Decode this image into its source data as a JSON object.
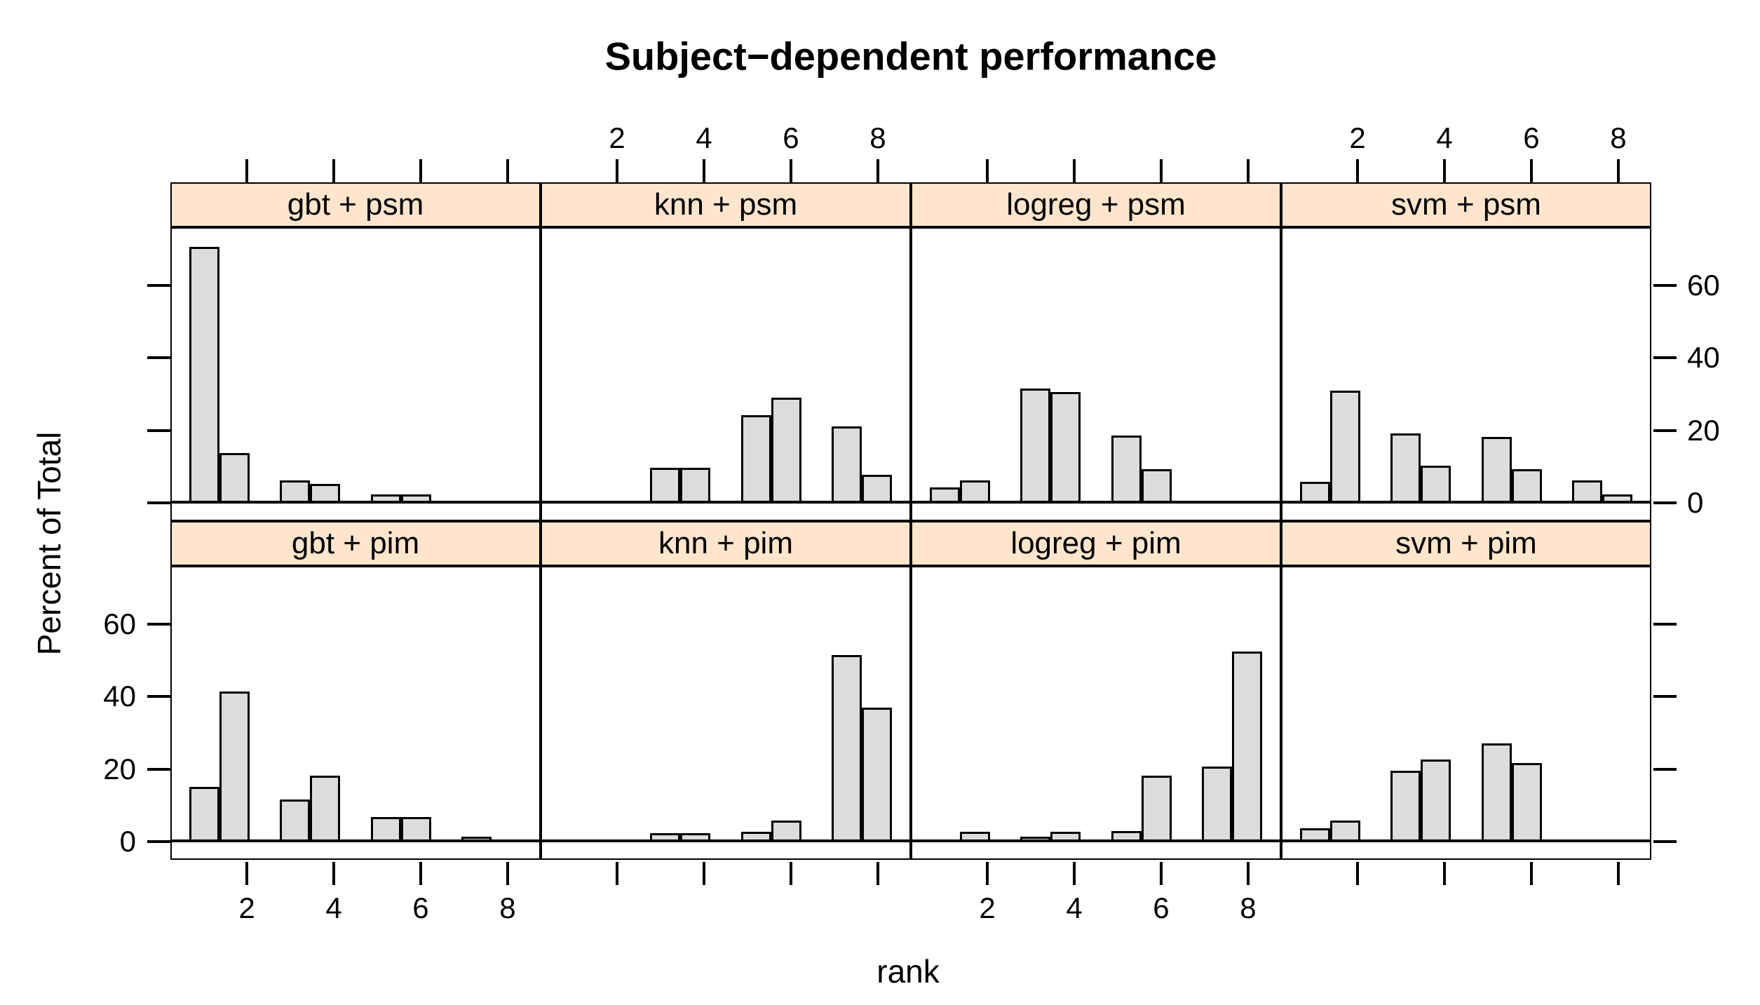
{
  "title": "Subject−dependent performance",
  "xlabel": "rank",
  "ylabel": "Percent of Total",
  "colors": {
    "strip_background": "#ffe5cc",
    "bar_fill": "#dcdcdc",
    "line": "#000000",
    "background": "#ffffff"
  },
  "chart_data": {
    "type": "bar",
    "subtype": "trellis-histogram-grid",
    "title": "Subject−dependent performance",
    "xlabel": "rank",
    "ylabel": "Percent of Total",
    "legend_position": "none",
    "grid_lines": "off",
    "x_tick_values": [
      2,
      4,
      6,
      8
    ],
    "x_tick_labels": [
      "2",
      "4",
      "6",
      "8"
    ],
    "y_tick_values": [
      0,
      20,
      40,
      60
    ],
    "y_tick_labels": [
      "0",
      "20",
      "40",
      "60"
    ],
    "xlim": [
      0.24,
      8.76
    ],
    "ylim": [
      -4.97,
      75.97
    ],
    "ranks": [
      1,
      2,
      3,
      4,
      5,
      6,
      7,
      8
    ],
    "bin_width": 0.7,
    "bin_lefts": [
      0.65,
      1.35,
      2.75,
      3.45,
      4.85,
      5.55,
      6.95,
      7.65
    ],
    "panel_grid_rows": [
      [
        "gbt + psm",
        "knn + psm",
        "logreg + psm",
        "svm + psm"
      ],
      [
        "gbt + pim",
        "knn + pim",
        "logreg + pim",
        "svm + pim"
      ]
    ],
    "panels": [
      {
        "label": "gbt + psm",
        "row": 0,
        "col": 0,
        "values": [
          71,
          13.5,
          6,
          5,
          2,
          2,
          0,
          0
        ]
      },
      {
        "label": "knn + psm",
        "row": 0,
        "col": 1,
        "values": [
          0,
          0,
          9.5,
          9.5,
          24,
          29,
          21,
          7.5
        ]
      },
      {
        "label": "logreg + psm",
        "row": 0,
        "col": 2,
        "values": [
          4,
          6,
          31.5,
          30.5,
          18.5,
          9,
          0,
          0
        ]
      },
      {
        "label": "svm + psm",
        "row": 0,
        "col": 3,
        "values": [
          5.5,
          31,
          19,
          10,
          18,
          9,
          6,
          2
        ]
      },
      {
        "label": "gbt + pim",
        "row": 1,
        "col": 0,
        "values": [
          15,
          41.5,
          11.5,
          18,
          6.5,
          6.5,
          1,
          0
        ]
      },
      {
        "label": "knn + pim",
        "row": 1,
        "col": 1,
        "values": [
          0,
          0,
          2,
          2,
          2.5,
          5.5,
          51.5,
          37
        ]
      },
      {
        "label": "logreg + pim",
        "row": 1,
        "col": 2,
        "values": [
          0,
          2.5,
          1,
          2.5,
          2.7,
          18,
          20.5,
          52.5
        ]
      },
      {
        "label": "svm + pim",
        "row": 1,
        "col": 3,
        "values": [
          3.5,
          5.5,
          19.5,
          22.5,
          27,
          21.5,
          0,
          0
        ]
      }
    ]
  }
}
